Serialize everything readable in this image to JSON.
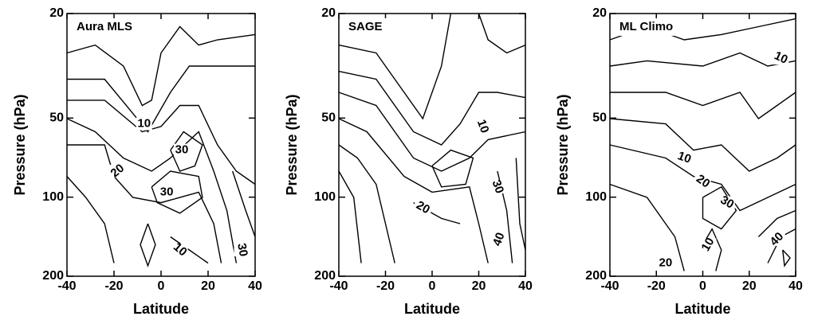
{
  "chart_data": [
    {
      "type": "contour",
      "title": "Aura MLS",
      "xlabel": "Latitude",
      "ylabel": "Pressure (hPa)",
      "xlim": [
        -40,
        40
      ],
      "xticks": [
        -40,
        -20,
        0,
        20,
        40
      ],
      "ylim": [
        200,
        20
      ],
      "yticks": [
        20,
        50,
        100,
        200
      ],
      "log_y": true,
      "color": "#000000",
      "contour_labels": [
        10,
        30,
        20,
        30,
        10,
        30
      ]
    },
    {
      "type": "contour",
      "title": "SAGE",
      "xlabel": "Latitude",
      "ylabel": "Pressure (hPa)",
      "xlim": [
        -40,
        40
      ],
      "xticks": [
        -40,
        -20,
        0,
        20,
        40
      ],
      "ylim": [
        200,
        20
      ],
      "yticks": [
        20,
        50,
        100,
        200
      ],
      "log_y": true,
      "color": "#000000",
      "contour_labels": [
        10,
        30,
        20,
        40
      ]
    },
    {
      "type": "contour",
      "title": "ML Climo",
      "xlabel": "Latitude",
      "ylabel": "Pressure (hPa)",
      "xlim": [
        -40,
        40
      ],
      "xticks": [
        -40,
        -20,
        0,
        20,
        40
      ],
      "ylim": [
        200,
        20
      ],
      "yticks": [
        20,
        50,
        100,
        200
      ],
      "log_y": true,
      "color": "#000000",
      "contour_labels": [
        10,
        10,
        20,
        30,
        10,
        40,
        20
      ]
    }
  ]
}
